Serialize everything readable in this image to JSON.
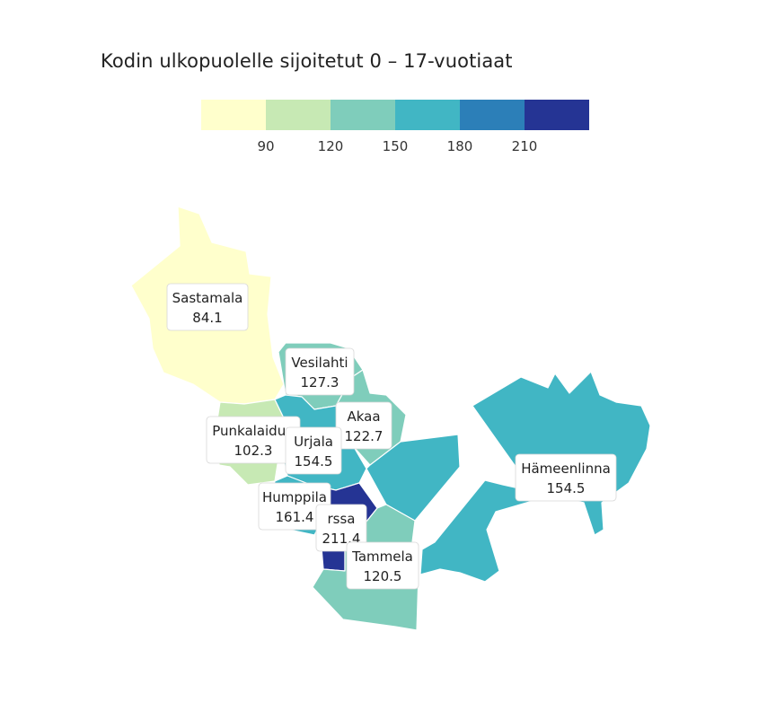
{
  "title": "Kodin ulkopuolelle sijoitetut 0 – 17-vuotiaat",
  "legend": {
    "colors": [
      "#ffffcc",
      "#c7e9b4",
      "#7fcdbb",
      "#41b6c4",
      "#2c7fb8",
      "#253494"
    ],
    "ticks": [
      "90",
      "120",
      "150",
      "180",
      "210"
    ]
  },
  "regions": [
    {
      "id": "sastamala",
      "name": "Sastamala",
      "value": "84.1",
      "color": "#ffffcc"
    },
    {
      "id": "vesilahti",
      "name": "Vesilahti",
      "value": "127.3",
      "color": "#7fcdbb"
    },
    {
      "id": "akaa",
      "name": "Akaa",
      "value": "122.7",
      "color": "#7fcdbb"
    },
    {
      "id": "punkalaidun",
      "name": "Punkalaidun",
      "value": "102.3",
      "color": "#c7e9b4"
    },
    {
      "id": "urjala",
      "name": "Urjala",
      "value": "154.5",
      "color": "#41b6c4"
    },
    {
      "id": "humppila",
      "name": "Humppila",
      "value": "161.4",
      "color": "#41b6c4"
    },
    {
      "id": "forssa",
      "name": "rssa",
      "value": "211.4",
      "color": "#253494"
    },
    {
      "id": "tammela",
      "name": "Tammela",
      "value": "120.5",
      "color": "#7fcdbb"
    },
    {
      "id": "hameenlinna",
      "name": "Hämeenlinna",
      "value": "154.5",
      "color": "#41b6c4"
    }
  ]
}
